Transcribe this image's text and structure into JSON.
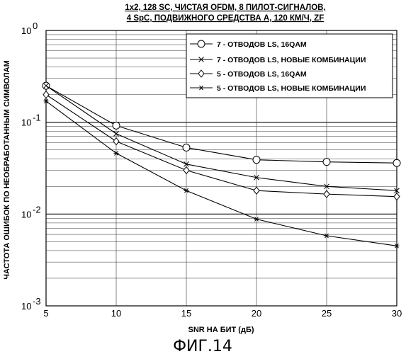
{
  "chart_data": {
    "type": "line",
    "title_lines": [
      "1x2, 128 SC, ЧИСТАЯ OFDM, 8 ПИЛОТ-СИГНАЛОВ,",
      "4 SpC, ПОДВИЖНОГО СРЕДСТВА А, 120 КМ/Ч, ZF"
    ],
    "xlabel": "SNR НА БИТ (дБ)",
    "ylabel": "ЧАСТОТА ОШИБОК ПО НЕОБРАБОТАННЫМ СИМВОЛАМ",
    "figure_caption": "ФИГ.14",
    "x": [
      5,
      10,
      15,
      20,
      25,
      30
    ],
    "xlim": [
      5,
      30
    ],
    "ylim": [
      0.001,
      1
    ],
    "yscale": "log",
    "grid": true,
    "legend_position": "top-right",
    "x_ticks": [
      "5",
      "10",
      "15",
      "20",
      "25",
      "30"
    ],
    "y_ticks": [
      {
        "base": "10",
        "exp": "0",
        "value": 1
      },
      {
        "base": "10",
        "exp": "-1",
        "value": 0.1
      },
      {
        "base": "10",
        "exp": "-2",
        "value": 0.01
      },
      {
        "base": "10",
        "exp": "-3",
        "value": 0.001
      }
    ],
    "series": [
      {
        "name": "7 - ОТВОДОВ LS, 16QAM",
        "marker": "circle",
        "values": [
          0.25,
          0.092,
          0.053,
          0.039,
          0.037,
          0.036
        ]
      },
      {
        "name": "7 - ОТВОДОВ LS, НОВЫЕ КОМБИНАЦИИ",
        "marker": "x",
        "values": [
          0.25,
          0.075,
          0.035,
          0.025,
          0.02,
          0.018
        ]
      },
      {
        "name": "5 - ОТВОДОВ LS, 16QAM",
        "marker": "diamond",
        "values": [
          0.2,
          0.062,
          0.03,
          0.018,
          0.0165,
          0.0155
        ]
      },
      {
        "name": "5 - ОТВОДОВ LS, НОВЫЕ КОМБИНАЦИИ",
        "marker": "star",
        "values": [
          0.17,
          0.046,
          0.018,
          0.0088,
          0.0058,
          0.0045
        ]
      }
    ]
  }
}
